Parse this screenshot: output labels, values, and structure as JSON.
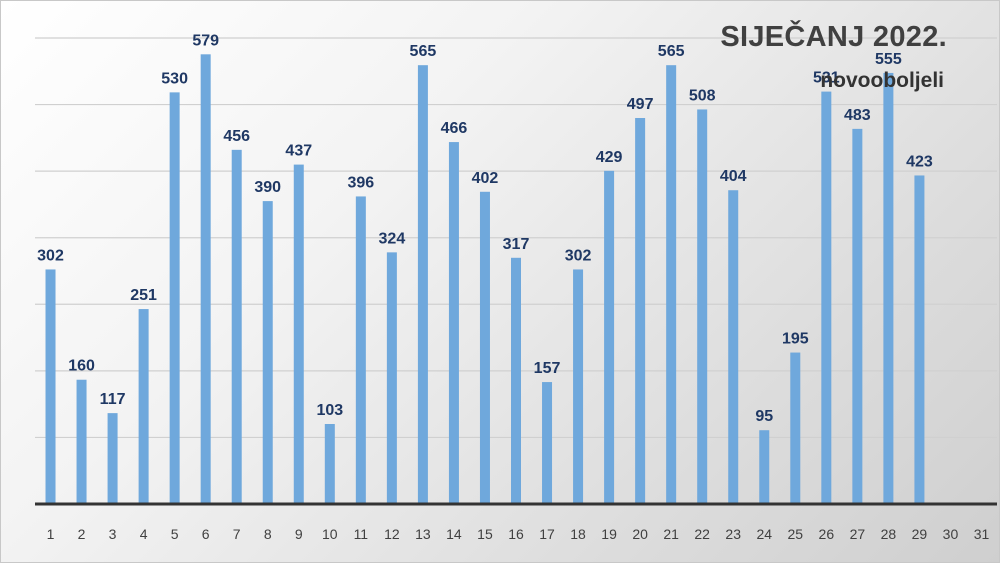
{
  "chart_data": {
    "type": "bar",
    "title": "SIJEČANJ 2022.",
    "subtitle": "novooboljeli",
    "categories": [
      "1",
      "2",
      "3",
      "4",
      "5",
      "6",
      "7",
      "8",
      "9",
      "10",
      "11",
      "12",
      "13",
      "14",
      "15",
      "16",
      "17",
      "18",
      "19",
      "20",
      "21",
      "22",
      "23",
      "24",
      "25",
      "26",
      "27",
      "28",
      "29",
      "30",
      "31"
    ],
    "values": [
      302,
      160,
      117,
      251,
      530,
      579,
      456,
      390,
      437,
      103,
      396,
      324,
      565,
      466,
      402,
      317,
      157,
      302,
      429,
      497,
      565,
      508,
      404,
      95,
      195,
      531,
      483,
      555,
      423,
      null,
      null
    ],
    "ylim": [
      0,
      600
    ],
    "grid": true,
    "legend": "none",
    "bar_color": "#6fa8dc",
    "label_color": "#1f3864"
  }
}
